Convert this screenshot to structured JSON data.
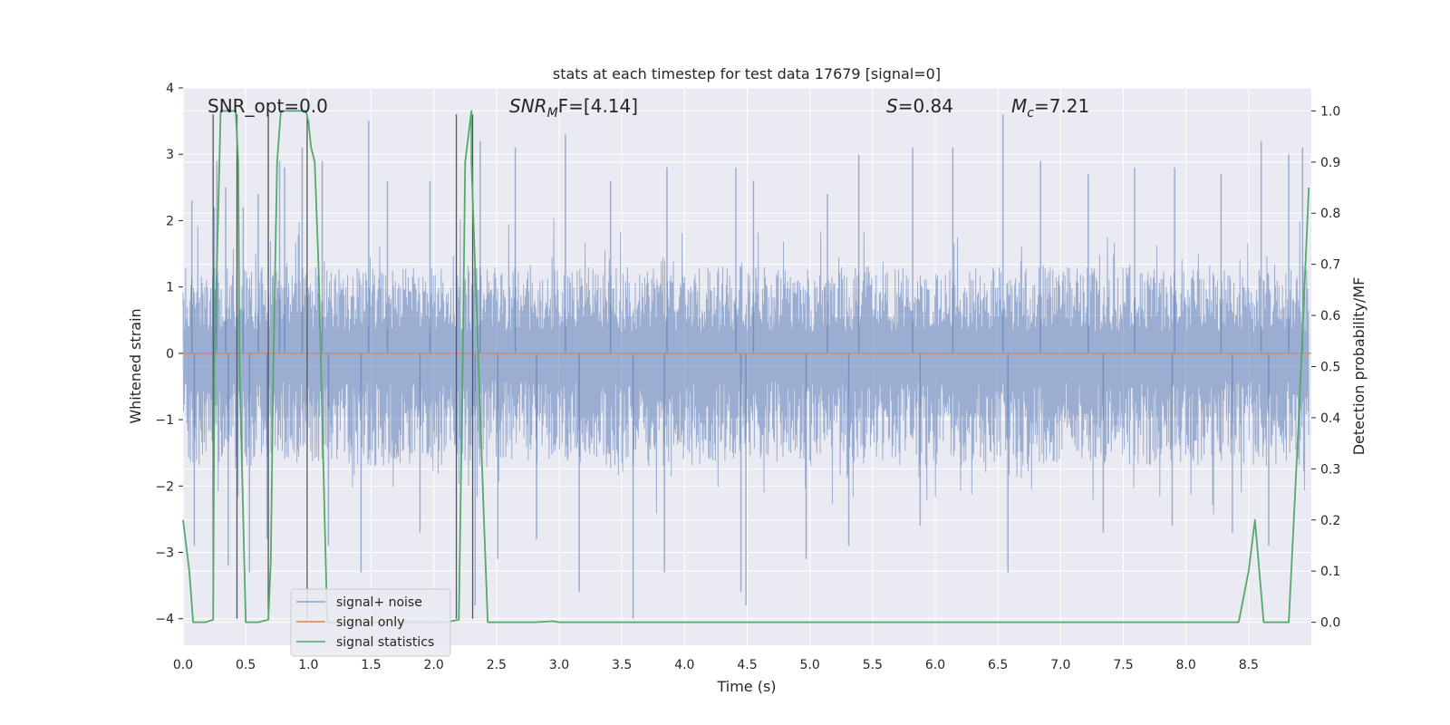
{
  "chart_data": {
    "type": "line",
    "title": "stats at each timestep for test data 17679 [signal=0]",
    "xlabel": "Time (s)",
    "ylabel": "Whitened strain",
    "ylabel_right": "Detection probability/MF",
    "xlim": [
      0.0,
      9.0
    ],
    "ylim": [
      -4.4,
      4.0
    ],
    "ylim_right": [
      -0.045,
      1.045
    ],
    "x_ticks": [
      0.0,
      0.5,
      1.0,
      1.5,
      2.0,
      2.5,
      3.0,
      3.5,
      4.0,
      4.5,
      5.0,
      5.5,
      6.0,
      6.5,
      7.0,
      7.5,
      8.0,
      8.5
    ],
    "x_tick_labels": [
      "0.0",
      "0.5",
      "1.0",
      "1.5",
      "2.0",
      "2.5",
      "3.0",
      "3.5",
      "4.0",
      "4.5",
      "5.0",
      "5.5",
      "6.0",
      "6.5",
      "7.0",
      "7.5",
      "8.0",
      "8.5"
    ],
    "y_ticks": [
      4,
      3,
      2,
      1,
      0,
      -1,
      -2,
      -3,
      -4
    ],
    "y_tick_labels": [
      "4",
      "3",
      "2",
      "1",
      "0",
      "−1",
      "−2",
      "−3",
      "−4"
    ],
    "y2_ticks": [
      1.0,
      0.9,
      0.8,
      0.7,
      0.6,
      0.5,
      0.4,
      0.3,
      0.2,
      0.1,
      0.0
    ],
    "y2_tick_labels": [
      "1.0",
      "0.9",
      "0.8",
      "0.7",
      "0.6",
      "0.5",
      "0.4",
      "0.3",
      "0.2",
      "0.1",
      "0.0"
    ],
    "annotations": {
      "snr_opt": "SNR_opt=0.0",
      "snr_mf_name": "SNR",
      "snr_mf_sub": "M",
      "snr_mf_rest": "F=[4.14]",
      "s_name": "S",
      "s_value": "=0.84",
      "mc_name": "M",
      "mc_sub": "c",
      "mc_value": "=7.21"
    },
    "legend": {
      "position": "lower-left",
      "entries": [
        "signal+ noise",
        "signal only",
        "signal statistics"
      ]
    },
    "colors": {
      "noise": "#4c72b0",
      "signal": "#dd8452",
      "stats": "#55a868",
      "markers": "#555555",
      "background": "#eaeaf2",
      "grid": "#ffffff"
    },
    "noise_series": {
      "name": "signal+ noise",
      "axis": "left",
      "t_start": 0.0,
      "t_end": 8.98,
      "envelope_upper": 1.3,
      "envelope_lower": -1.7,
      "spike_times": [
        0.07,
        0.25,
        0.27,
        0.34,
        0.48,
        0.6,
        0.77,
        0.81,
        0.95,
        1.11,
        1.48,
        1.63,
        1.97,
        2.37,
        2.65,
        3.05,
        3.41,
        3.86,
        4.41,
        4.55,
        5.14,
        5.39,
        5.82,
        6.14,
        6.54,
        6.84,
        7.22,
        7.59,
        7.91,
        8.28,
        8.6,
        8.82,
        8.93
      ],
      "spike_values": [
        2.3,
        2.2,
        2.9,
        2.5,
        2.2,
        2.4,
        2.9,
        2.8,
        3.1,
        2.9,
        3.5,
        2.6,
        2.6,
        3.2,
        3.1,
        3.3,
        2.6,
        2.8,
        2.8,
        2.6,
        2.4,
        3.0,
        3.1,
        3.1,
        3.6,
        2.9,
        2.7,
        2.8,
        2.8,
        2.7,
        3.2,
        3.0,
        3.1
      ],
      "dip_times": [
        0.09,
        0.36,
        0.53,
        0.67,
        1.16,
        1.42,
        1.89,
        2.33,
        2.51,
        2.82,
        3.16,
        3.59,
        3.84,
        4.45,
        4.49,
        4.97,
        5.31,
        5.88,
        6.58,
        7.34,
        7.89,
        8.37,
        8.66
      ],
      "dip_values": [
        -2.9,
        -3.2,
        -3.3,
        -2.8,
        -2.9,
        -3.3,
        -2.7,
        -3.8,
        -3.1,
        -2.8,
        -3.6,
        -4.0,
        -3.3,
        -3.6,
        -3.8,
        -3.1,
        -2.9,
        -2.6,
        -3.3,
        -2.7,
        -2.6,
        -2.7,
        -2.9
      ]
    },
    "signal_series": {
      "name": "signal only",
      "axis": "left",
      "x": [
        0.0,
        9.0
      ],
      "y": [
        0.0,
        0.0
      ]
    },
    "stats_series": {
      "name": "signal statistics",
      "axis": "right",
      "x": [
        0.0,
        0.05,
        0.08,
        0.18,
        0.24,
        0.25,
        0.3,
        0.42,
        0.44,
        0.45,
        0.5,
        0.6,
        0.68,
        0.7,
        0.72,
        0.75,
        0.78,
        0.98,
        1.0,
        1.02,
        1.05,
        1.08,
        1.1,
        1.13,
        1.15,
        1.2,
        1.5,
        2.1,
        2.2,
        2.23,
        2.25,
        2.3,
        2.3,
        2.4,
        2.43,
        2.8,
        2.95,
        3.0,
        8.42,
        8.5,
        8.55,
        8.62,
        8.82,
        8.9,
        8.98
      ],
      "y": [
        0.2,
        0.1,
        0.0,
        0.0,
        0.005,
        0.5,
        1.0,
        1.0,
        0.9,
        0.5,
        0.0,
        0.0,
        0.005,
        0.12,
        0.5,
        0.9,
        1.0,
        1.0,
        0.98,
        0.93,
        0.9,
        0.7,
        0.5,
        0.2,
        0.0,
        0.0,
        0.0,
        0.0,
        0.005,
        0.5,
        0.9,
        1.0,
        0.9,
        0.2,
        0.0,
        0.0,
        0.002,
        0.0,
        0.0,
        0.1,
        0.2,
        0.0,
        0.0,
        0.4,
        0.85
      ]
    },
    "marker_lines": {
      "axis": "left",
      "y_range": [
        -4.0,
        3.6
      ],
      "x": [
        0.24,
        0.43,
        0.68,
        0.99,
        2.18,
        2.31
      ]
    }
  }
}
